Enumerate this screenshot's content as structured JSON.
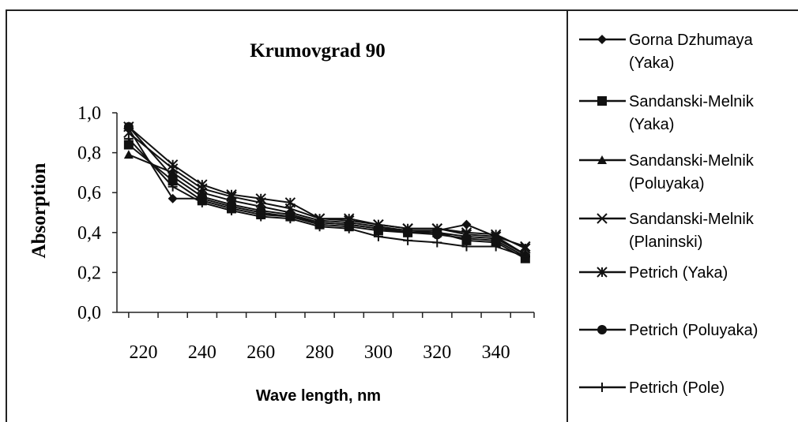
{
  "chart_data": {
    "type": "line",
    "title": "Krumovgrad 90",
    "xlabel": "Wave length, nm",
    "ylabel": "Absorption",
    "xlim": [
      211,
      353
    ],
    "ylim": [
      0,
      1.0
    ],
    "x_ticks": [
      220,
      240,
      260,
      280,
      300,
      320,
      340
    ],
    "y_ticks": [
      "0,0",
      "0,2",
      "0,4",
      "0,6",
      "0,8",
      "1,0"
    ],
    "y_tick_values": [
      0,
      0.2,
      0.4,
      0.6,
      0.8,
      1.0
    ],
    "grid": false,
    "legend_position": "right",
    "x": [
      215,
      230,
      240,
      250,
      260,
      270,
      280,
      290,
      300,
      310,
      320,
      330,
      340,
      350
    ],
    "series": [
      {
        "name": "Gorna Dzhumaya (Yaka)",
        "marker": "diamond",
        "values": [
          0.92,
          0.57,
          0.57,
          0.53,
          0.5,
          0.48,
          0.45,
          0.44,
          0.42,
          0.41,
          0.41,
          0.44,
          0.38,
          0.29
        ]
      },
      {
        "name": "Sandanski-Melnik (Yaka)",
        "marker": "square",
        "values": [
          0.84,
          0.66,
          0.56,
          0.52,
          0.49,
          0.48,
          0.44,
          0.43,
          0.41,
          0.4,
          0.4,
          0.36,
          0.35,
          0.27
        ]
      },
      {
        "name": "Sandanski-Melnik (Poluyaka)",
        "marker": "triangle",
        "values": [
          0.79,
          0.7,
          0.6,
          0.56,
          0.53,
          0.5,
          0.46,
          0.45,
          0.43,
          0.41,
          0.4,
          0.38,
          0.37,
          0.29
        ]
      },
      {
        "name": "Sandanski-Melnik (Planinski)",
        "marker": "x",
        "values": [
          0.9,
          0.72,
          0.62,
          0.58,
          0.55,
          0.52,
          0.47,
          0.46,
          0.44,
          0.42,
          0.42,
          0.39,
          0.38,
          0.33
        ]
      },
      {
        "name": "Petrich (Yaka)",
        "marker": "star",
        "values": [
          0.93,
          0.74,
          0.64,
          0.59,
          0.57,
          0.55,
          0.47,
          0.47,
          0.44,
          0.42,
          0.42,
          0.4,
          0.39,
          0.32
        ]
      },
      {
        "name": "Petrich (Poluyaka)",
        "marker": "circle",
        "values": [
          0.93,
          0.68,
          0.58,
          0.54,
          0.51,
          0.49,
          0.45,
          0.44,
          0.42,
          0.4,
          0.39,
          0.37,
          0.36,
          0.28
        ]
      },
      {
        "name": "Petrich (Pole)",
        "marker": "plus",
        "values": [
          0.87,
          0.63,
          0.55,
          0.51,
          0.48,
          0.47,
          0.43,
          0.42,
          0.38,
          0.36,
          0.35,
          0.33,
          0.33,
          0.28
        ]
      }
    ]
  },
  "legend_lines": [
    [
      "Gorna Dzhumaya",
      "(Yaka)"
    ],
    [
      "Sandanski-Melnik",
      "(Yaka)"
    ],
    [
      "Sandanski-Melnik",
      "(Poluyaka)"
    ],
    [
      "Sandanski-Melnik",
      "(Planinski)"
    ],
    [
      "Petrich (Yaka)"
    ],
    [
      "Petrich (Poluyaka)"
    ],
    [
      "Petrich (Pole)"
    ]
  ]
}
